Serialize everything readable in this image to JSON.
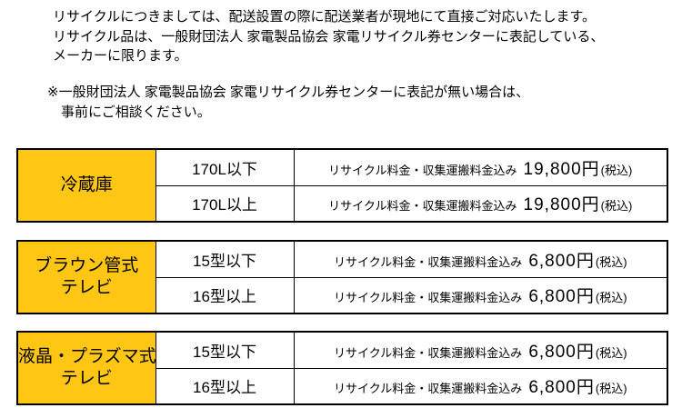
{
  "page": {
    "language": "ja",
    "colors": {
      "background": "#ffffff",
      "text": "#000000",
      "category_cell_yellow": "#ffc613",
      "table_border": "#000000"
    }
  },
  "intro": {
    "lines": [
      "リサイクルにつきましては、配送設置の際に配送業者が現地にて直接ご対応いたします。",
      "リサイクル品は、一般財団法人 家電製品協会 家電リサイクル券センターに表記している、",
      "メーカーに限ります。"
    ]
  },
  "note": {
    "lines": [
      "※一般財団法人 家電製品協会 家電リサイクル券センターに表記が無い場合は、",
      "事前にご相談ください。"
    ]
  },
  "tables": [
    {
      "category_lines": [
        "冷蔵庫"
      ],
      "rows": [
        {
          "size": "170L以下",
          "fee_label": "リサイクル料金・収集運搬料金込み",
          "amount": "19,800円",
          "tax": "(税込)"
        },
        {
          "size": "170L以上",
          "fee_label": "リサイクル料金・収集運搬料金込み",
          "amount": "19,800円",
          "tax": "(税込)"
        }
      ]
    },
    {
      "category_lines": [
        "ブラウン管式",
        "テレビ"
      ],
      "rows": [
        {
          "size": "15型以下",
          "fee_label": "リサイクル料金・収集運搬料金込み",
          "amount": "6,800円",
          "tax": "(税込)"
        },
        {
          "size": "16型以上",
          "fee_label": "リサイクル料金・収集運搬料金込み",
          "amount": "6,800円",
          "tax": "(税込)"
        }
      ]
    },
    {
      "category_lines": [
        "液晶・プラズマ式",
        "テレビ"
      ],
      "rows": [
        {
          "size": "15型以下",
          "fee_label": "リサイクル料金・収集運搬料金込み",
          "amount": "6,800円",
          "tax": "(税込)"
        },
        {
          "size": "16型以上",
          "fee_label": "リサイクル料金・収集運搬料金込み",
          "amount": "6,800円",
          "tax": "(税込)"
        }
      ]
    }
  ]
}
